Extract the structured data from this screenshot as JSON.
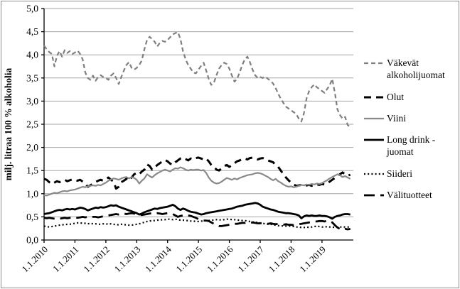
{
  "figure": {
    "border_color": "#8c8c8c",
    "background": "#ffffff",
    "gridline_color": "#a6a6a6",
    "axis_color": "#000000"
  },
  "chart_data": {
    "type": "line",
    "title": "",
    "xlabel": "",
    "ylabel": "milj. litraa 100 % alkoholia",
    "ylim": [
      0,
      5
    ],
    "y_tick_labels": [
      "5,0",
      "4,5",
      "4,0",
      "3,5",
      "3,0",
      "2,5",
      "2,0",
      "1,5",
      "1,0",
      "0,5",
      "0,0"
    ],
    "x_tick_labels": [
      "1.1.2010",
      "1.1.2011",
      "1.1.2012",
      "1.1.2013",
      "1.1.2014",
      "1.1.2015",
      "1.1.2016",
      "1.1.2017",
      "1.1.2018",
      "1.1.2019"
    ],
    "x_range_note": "monthly points, Jan 2010 - Dec 2019",
    "grid": true,
    "legend_position": "right",
    "series": [
      {
        "id": "vakevat-alkoholijuomat",
        "name": "Väkevät alkoholijuomat",
        "color": "#7f7f7f",
        "style": "dashed",
        "width": 2.2,
        "values": [
          4.2,
          4.12,
          4.06,
          4.02,
          3.75,
          3.98,
          4.08,
          3.96,
          4.1,
          4.04,
          4.08,
          4.02,
          4.05,
          4.09,
          4.02,
          3.9,
          3.62,
          3.5,
          3.46,
          3.55,
          3.44,
          3.52,
          3.56,
          3.52,
          3.5,
          3.46,
          3.55,
          3.6,
          3.5,
          3.37,
          3.52,
          3.66,
          3.78,
          3.84,
          3.72,
          3.68,
          3.72,
          3.78,
          3.88,
          4.12,
          4.32,
          4.39,
          4.34,
          4.28,
          4.18,
          4.26,
          4.3,
          4.28,
          4.32,
          4.38,
          4.44,
          4.47,
          4.49,
          4.34,
          4.08,
          3.9,
          3.78,
          3.7,
          3.62,
          3.6,
          3.68,
          3.76,
          3.83,
          3.66,
          3.48,
          3.35,
          3.4,
          3.56,
          3.7,
          3.78,
          3.83,
          3.8,
          3.7,
          3.55,
          3.42,
          3.48,
          3.62,
          3.78,
          3.9,
          3.96,
          3.84,
          3.68,
          3.56,
          3.5,
          3.52,
          3.5,
          3.53,
          3.48,
          3.44,
          3.38,
          3.28,
          3.16,
          3.05,
          2.96,
          2.88,
          2.84,
          2.8,
          2.76,
          2.72,
          2.62,
          2.56,
          2.74,
          3.06,
          3.22,
          3.3,
          3.36,
          3.3,
          3.26,
          3.22,
          3.18,
          3.26,
          3.34,
          3.48,
          3.18,
          2.82,
          2.7,
          2.62,
          2.66,
          2.48,
          2.45
        ]
      },
      {
        "id": "olut",
        "name": "Olut",
        "color": "#000000",
        "style": "dashed-bold",
        "width": 3,
        "values": [
          1.32,
          1.3,
          1.25,
          1.21,
          1.24,
          1.27,
          1.25,
          1.28,
          1.3,
          1.27,
          1.29,
          1.31,
          1.3,
          1.28,
          1.3,
          1.26,
          1.22,
          1.15,
          1.18,
          1.22,
          1.25,
          1.28,
          1.3,
          1.28,
          1.32,
          1.35,
          1.3,
          1.26,
          1.11,
          1.15,
          1.25,
          1.28,
          1.32,
          1.28,
          1.35,
          1.42,
          1.45,
          1.42,
          1.48,
          1.52,
          1.63,
          1.6,
          1.52,
          1.56,
          1.62,
          1.66,
          1.7,
          1.73,
          1.7,
          1.65,
          1.62,
          1.68,
          1.72,
          1.76,
          1.78,
          1.75,
          1.72,
          1.76,
          1.74,
          1.77,
          1.78,
          1.76,
          1.74,
          1.76,
          1.7,
          1.62,
          1.58,
          1.52,
          1.5,
          1.55,
          1.6,
          1.62,
          1.58,
          1.62,
          1.66,
          1.7,
          1.72,
          1.75,
          1.76,
          1.74,
          1.77,
          1.78,
          1.76,
          1.74,
          1.76,
          1.77,
          1.75,
          1.72,
          1.7,
          1.68,
          1.62,
          1.58,
          1.5,
          1.42,
          1.35,
          1.29,
          1.24,
          1.2,
          1.17,
          1.18,
          1.19,
          1.17,
          1.18,
          1.19,
          1.17,
          1.18,
          1.2,
          1.19,
          1.21,
          1.2,
          1.22,
          1.26,
          1.3,
          1.34,
          1.38,
          1.42,
          1.46,
          1.42,
          1.39,
          1.41
        ]
      },
      {
        "id": "viini",
        "name": "Viini",
        "color": "#898989",
        "style": "solid",
        "width": 2.2,
        "values": [
          0.97,
          0.96,
          0.98,
          1.0,
          1.02,
          1.01,
          1.03,
          1.05,
          1.06,
          1.05,
          1.07,
          1.08,
          1.09,
          1.11,
          1.13,
          1.15,
          1.14,
          1.16,
          1.17,
          1.18,
          1.17,
          1.19,
          1.18,
          1.21,
          1.24,
          1.28,
          1.31,
          1.33,
          1.32,
          1.3,
          1.33,
          1.35,
          1.36,
          1.33,
          1.36,
          1.34,
          1.3,
          1.22,
          1.28,
          1.33,
          1.42,
          1.38,
          1.35,
          1.4,
          1.44,
          1.47,
          1.5,
          1.52,
          1.5,
          1.48,
          1.52,
          1.55,
          1.54,
          1.57,
          1.55,
          1.52,
          1.5,
          1.52,
          1.51,
          1.52,
          1.52,
          1.5,
          1.51,
          1.45,
          1.35,
          1.28,
          1.24,
          1.22,
          1.23,
          1.26,
          1.3,
          1.34,
          1.32,
          1.3,
          1.33,
          1.31,
          1.34,
          1.36,
          1.38,
          1.4,
          1.41,
          1.42,
          1.44,
          1.45,
          1.44,
          1.42,
          1.39,
          1.36,
          1.32,
          1.29,
          1.32,
          1.27,
          1.24,
          1.2,
          1.17,
          1.15,
          1.16,
          1.14,
          1.15,
          1.17,
          1.19,
          1.18,
          1.2,
          1.19,
          1.21,
          1.2,
          1.22,
          1.21,
          1.23,
          1.26,
          1.29,
          1.33,
          1.36,
          1.39,
          1.42,
          1.4,
          1.36,
          1.38,
          1.35,
          1.32
        ]
      },
      {
        "id": "long-drink-juomat",
        "name": "Long drink -juomat",
        "color": "#000000",
        "style": "solid-bold",
        "width": 2.8,
        "values": [
          0.56,
          0.57,
          0.58,
          0.6,
          0.62,
          0.64,
          0.65,
          0.64,
          0.66,
          0.67,
          0.66,
          0.67,
          0.66,
          0.68,
          0.7,
          0.69,
          0.67,
          0.64,
          0.66,
          0.68,
          0.7,
          0.69,
          0.71,
          0.7,
          0.71,
          0.73,
          0.75,
          0.74,
          0.75,
          0.72,
          0.7,
          0.68,
          0.66,
          0.64,
          0.62,
          0.6,
          0.58,
          0.55,
          0.57,
          0.6,
          0.62,
          0.64,
          0.66,
          0.68,
          0.67,
          0.69,
          0.7,
          0.71,
          0.72,
          0.74,
          0.76,
          0.73,
          0.68,
          0.65,
          0.68,
          0.66,
          0.63,
          0.61,
          0.6,
          0.59,
          0.57,
          0.55,
          0.56,
          0.58,
          0.59,
          0.6,
          0.61,
          0.62,
          0.63,
          0.64,
          0.65,
          0.66,
          0.67,
          0.68,
          0.7,
          0.72,
          0.73,
          0.74,
          0.76,
          0.77,
          0.78,
          0.79,
          0.8,
          0.79,
          0.76,
          0.72,
          0.7,
          0.68,
          0.66,
          0.65,
          0.63,
          0.61,
          0.6,
          0.59,
          0.58,
          0.58,
          0.57,
          0.56,
          0.55,
          0.53,
          0.47,
          0.51,
          0.53,
          0.52,
          0.53,
          0.52,
          0.52,
          0.53,
          0.52,
          0.52,
          0.51,
          0.49,
          0.46,
          0.5,
          0.52,
          0.53,
          0.55,
          0.56,
          0.56,
          0.55
        ]
      },
      {
        "id": "siideri",
        "name": "Siideri",
        "color": "#000000",
        "style": "dotted",
        "width": 2.2,
        "values": [
          0.3,
          0.29,
          0.28,
          0.29,
          0.3,
          0.31,
          0.32,
          0.33,
          0.33,
          0.34,
          0.34,
          0.35,
          0.36,
          0.37,
          0.37,
          0.36,
          0.36,
          0.35,
          0.36,
          0.35,
          0.35,
          0.34,
          0.34,
          0.35,
          0.35,
          0.34,
          0.35,
          0.34,
          0.33,
          0.33,
          0.34,
          0.33,
          0.33,
          0.32,
          0.32,
          0.33,
          0.34,
          0.35,
          0.37,
          0.38,
          0.4,
          0.41,
          0.42,
          0.42,
          0.43,
          0.43,
          0.44,
          0.44,
          0.45,
          0.45,
          0.44,
          0.45,
          0.44,
          0.43,
          0.43,
          0.42,
          0.42,
          0.41,
          0.41,
          0.4,
          0.4,
          0.41,
          0.41,
          0.42,
          0.42,
          0.43,
          0.43,
          0.44,
          0.44,
          0.43,
          0.44,
          0.45,
          0.45,
          0.44,
          0.44,
          0.43,
          0.43,
          0.42,
          0.42,
          0.41,
          0.4,
          0.39,
          0.38,
          0.38,
          0.37,
          0.36,
          0.35,
          0.34,
          0.34,
          0.33,
          0.32,
          0.31,
          0.31,
          0.3,
          0.3,
          0.3,
          0.3,
          0.29,
          0.28,
          0.28,
          0.27,
          0.27,
          0.28,
          0.27,
          0.28,
          0.29,
          0.3,
          0.29,
          0.28,
          0.28,
          0.29,
          0.28,
          0.28,
          0.27,
          0.28,
          0.28,
          0.28,
          0.28,
          0.28,
          0.28
        ]
      },
      {
        "id": "valituotteet",
        "name": "Välituotteet",
        "color": "#000000",
        "style": "long-dash",
        "width": 2.8,
        "values": [
          0.48,
          0.47,
          0.48,
          0.47,
          0.46,
          0.45,
          0.46,
          0.47,
          0.48,
          0.47,
          0.48,
          0.48,
          0.49,
          0.48,
          0.49,
          0.5,
          0.49,
          0.5,
          0.49,
          0.5,
          0.5,
          0.49,
          0.5,
          0.51,
          0.52,
          0.53,
          0.54,
          0.55,
          0.56,
          0.55,
          0.56,
          0.57,
          0.56,
          0.57,
          0.58,
          0.57,
          0.56,
          0.55,
          0.54,
          0.55,
          0.56,
          0.57,
          0.58,
          0.57,
          0.58,
          0.57,
          0.56,
          0.57,
          0.58,
          0.57,
          0.56,
          0.53,
          0.5,
          0.52,
          0.53,
          0.52,
          0.53,
          0.52,
          0.5,
          0.48,
          0.45,
          0.43,
          0.42,
          0.42,
          0.41,
          0.38,
          0.35,
          0.32,
          0.3,
          0.3,
          0.31,
          0.32,
          0.33,
          0.34,
          0.35,
          0.35,
          0.36,
          0.37,
          0.37,
          0.38,
          0.37,
          0.38,
          0.37,
          0.36,
          0.36,
          0.37,
          0.36,
          0.35,
          0.36,
          0.35,
          0.34,
          0.35,
          0.34,
          0.33,
          0.34,
          0.33,
          0.33,
          0.32,
          0.33,
          0.34,
          0.35,
          0.36,
          0.37,
          0.38,
          0.39,
          0.4,
          0.4,
          0.41,
          0.41,
          0.4,
          0.42,
          0.4,
          0.38,
          0.32,
          0.27,
          0.24,
          0.22,
          0.24,
          0.23,
          0.24
        ]
      }
    ]
  }
}
